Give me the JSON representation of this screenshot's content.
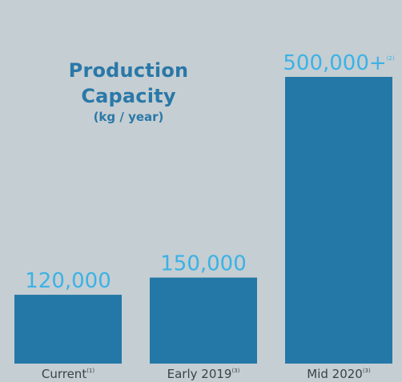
{
  "chart_data": {
    "type": "bar",
    "title": "Production\nCapacity",
    "title_lines": [
      "Production",
      "Capacity"
    ],
    "subtitle": "(kg / year)",
    "categories": [
      "Current",
      "Early 2019",
      "Mid 2020"
    ],
    "category_footnotes": [
      "(1)",
      "(3)",
      "(3)"
    ],
    "values": [
      120000,
      150000,
      500000
    ],
    "value_labels": [
      "120,000",
      "150,000",
      "500,000+"
    ],
    "value_label_footnotes": [
      "",
      "",
      "(2)"
    ],
    "ylim": [
      0,
      520000
    ],
    "grid": false,
    "legend": "none"
  },
  "colors": {
    "background": "#c5ced2",
    "bar": "#2378a7",
    "title": "#2a78a8",
    "value_label": "#3bb2e6",
    "category_label": "#3a4448"
  }
}
